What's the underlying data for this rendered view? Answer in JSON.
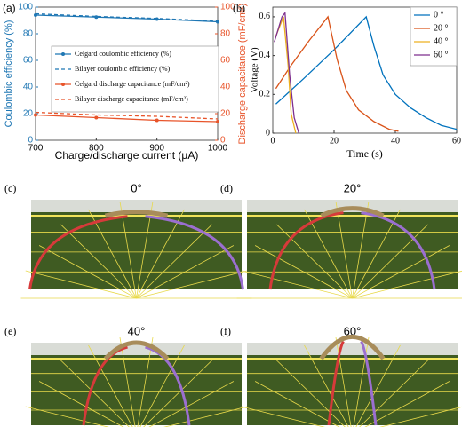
{
  "chart_data": [
    {
      "type": "line",
      "label": "(a)",
      "x_label": "Charge/discharge current (μA)",
      "y_label": "Coulombic efficiency (%)",
      "y2_label": "Discharge capacitance (mF/cm²)",
      "x": [
        700,
        800,
        900,
        1000
      ],
      "xlim": [
        700,
        1000
      ],
      "xticks": [
        700,
        800,
        900,
        1000
      ],
      "ylim": [
        0,
        100
      ],
      "yticks": [
        0,
        20,
        40,
        60,
        80,
        100
      ],
      "y2lim": [
        0,
        100
      ],
      "y2ticks": [
        0,
        20,
        40,
        60,
        80,
        100
      ],
      "y_color": "#1f77b4",
      "y2_color": "#e8542a",
      "legend": "center",
      "series": [
        {
          "name": "Celgard coulombic efficiency (%)",
          "color": "#1f77b4",
          "line_style": "solid",
          "marker": true,
          "values": [
            94,
            92.5,
            91,
            89
          ]
        },
        {
          "name": "Bilayer coulombic efficiency (%)",
          "color": "#1f77b4",
          "line_style": "dashed",
          "marker": false,
          "values": [
            95,
            93,
            91.5,
            89.5
          ]
        },
        {
          "name": "Celgard discharge capacitance (mF/cm²)",
          "color": "#e8542a",
          "line_style": "solid",
          "marker": true,
          "axis": "y2",
          "values": [
            19,
            17,
            15,
            14
          ]
        },
        {
          "name": "Bilayer discharge capacitance (mF/cm²)",
          "color": "#e8542a",
          "line_style": "dashed",
          "marker": false,
          "axis": "y2",
          "values": [
            21,
            19,
            18,
            16
          ]
        }
      ]
    },
    {
      "type": "line",
      "label": "(b)",
      "x_label": "Time (s)",
      "y_label": "Voltage (V)",
      "xlim": [
        0,
        60
      ],
      "xticks": [
        0,
        20,
        40,
        60
      ],
      "ylim": [
        0,
        0.65
      ],
      "yticks": [
        0,
        0.2,
        0.4,
        0.6
      ],
      "legend": "upper right",
      "series": [
        {
          "name": "0 °",
          "color": "#0072bd",
          "x": [
            1,
            10,
            20,
            30.5,
            33,
            36,
            40,
            45,
            50,
            55,
            60
          ],
          "values": [
            0.15,
            0.28,
            0.43,
            0.6,
            0.45,
            0.3,
            0.2,
            0.13,
            0.08,
            0.04,
            0.02
          ]
        },
        {
          "name": "20 °",
          "color": "#d95319",
          "x": [
            1,
            6,
            12,
            18,
            21,
            24,
            28,
            33,
            38,
            41
          ],
          "values": [
            0.23,
            0.35,
            0.48,
            0.6,
            0.38,
            0.22,
            0.12,
            0.06,
            0.02,
            0.01
          ]
        },
        {
          "name": "40 °",
          "color": "#edb120",
          "x": [
            1,
            3.5,
            5,
            6,
            7.5
          ],
          "values": [
            0.5,
            0.6,
            0.35,
            0.1,
            0
          ]
        },
        {
          "name": "60 °",
          "color": "#7e2f8e",
          "x": [
            0.5,
            3,
            4,
            5.5,
            7,
            8.5
          ],
          "values": [
            0.47,
            0.6,
            0.62,
            0.3,
            0.08,
            0
          ]
        }
      ]
    }
  ],
  "photos": [
    {
      "label": "(c)",
      "title": "0°"
    },
    {
      "label": "(d)",
      "title": "20°"
    },
    {
      "label": "(e)",
      "title": "40°"
    },
    {
      "label": "(f)",
      "title": "60°"
    }
  ]
}
